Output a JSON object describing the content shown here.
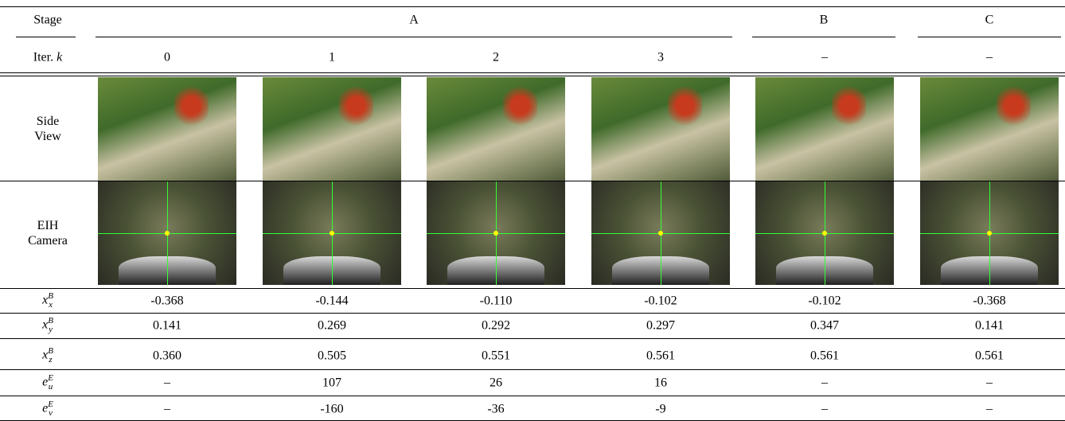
{
  "header": {
    "stage_label": "Stage",
    "stages": [
      "A",
      "B",
      "C"
    ],
    "iter_label": {
      "text": "Iter.",
      "var": "k"
    },
    "iters": [
      "0",
      "1",
      "2",
      "3",
      "–",
      "–"
    ]
  },
  "image_rows": [
    "Side View",
    "EIH Camera"
  ],
  "rows": [
    {
      "label": {
        "base": "x",
        "sub": "x",
        "sup": "B"
      },
      "cells": [
        "-0.368",
        "-0.144",
        "-0.110",
        "-0.102",
        "-0.102",
        "-0.368"
      ]
    },
    {
      "label": {
        "base": "x",
        "sub": "y",
        "sup": "B"
      },
      "cells": [
        "0.141",
        "0.269",
        "0.292",
        "0.297",
        "0.347",
        "0.141"
      ]
    },
    {
      "label": {
        "base": "x",
        "sub": "z",
        "sup": "B"
      },
      "cells": [
        "0.360",
        "0.505",
        "0.551",
        "0.561",
        "0.561",
        "0.561"
      ]
    },
    {
      "label": {
        "base": "e",
        "sub": "u",
        "sup": "E"
      },
      "cells": [
        "–",
        "107",
        "26",
        "16",
        "–",
        "–"
      ]
    },
    {
      "label": {
        "base": "e",
        "sub": "v",
        "sup": "E"
      },
      "cells": [
        "–",
        "-160",
        "-36",
        "-9",
        "–",
        "–"
      ]
    }
  ]
}
